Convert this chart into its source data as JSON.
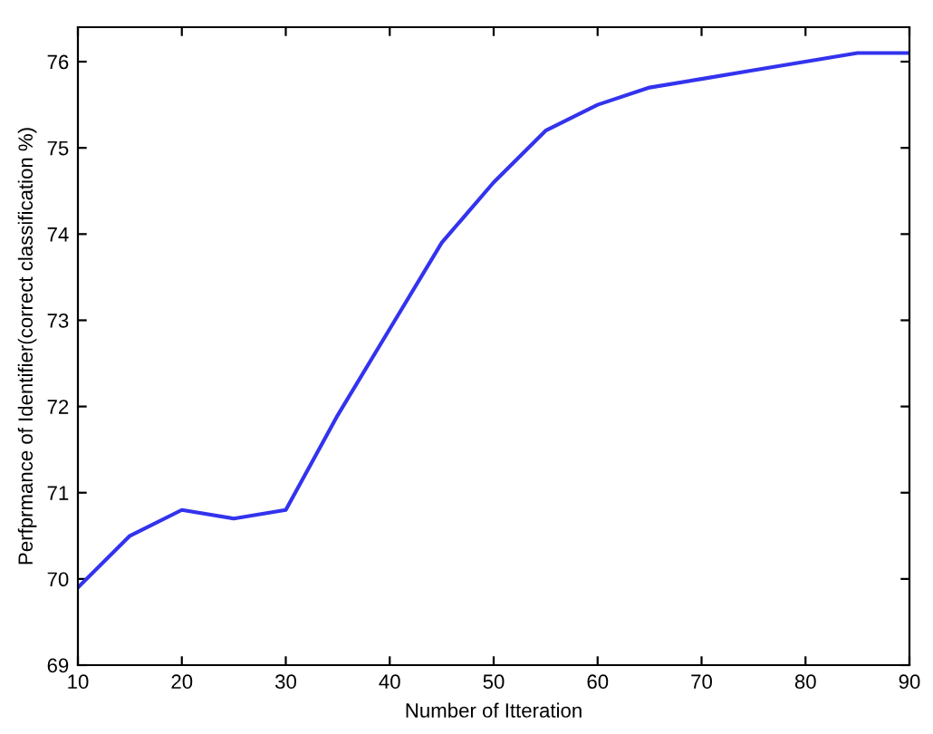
{
  "chart_data": {
    "type": "line",
    "xlabel": "Number of Itteration",
    "ylabel": "Perfprmance of Identifier(correct classification %)",
    "x": [
      10,
      15,
      20,
      25,
      30,
      35,
      40,
      45,
      50,
      55,
      60,
      65,
      70,
      75,
      80,
      85,
      90
    ],
    "series": [
      {
        "color": "#3333ee",
        "values": [
          69.9,
          70.5,
          70.8,
          70.7,
          70.8,
          71.9,
          72.9,
          73.9,
          74.6,
          75.2,
          75.5,
          75.7,
          75.8,
          75.9,
          76.0,
          76.1,
          76.1
        ]
      }
    ],
    "xlim": [
      10,
      90
    ],
    "ylim": [
      69,
      76.4
    ],
    "xticks": [
      10,
      20,
      30,
      40,
      50,
      60,
      70,
      80,
      90
    ],
    "yticks": [
      69,
      70,
      71,
      72,
      73,
      74,
      75,
      76
    ],
    "grid": false,
    "legend": false,
    "marker": "none",
    "line_style": "solid"
  }
}
